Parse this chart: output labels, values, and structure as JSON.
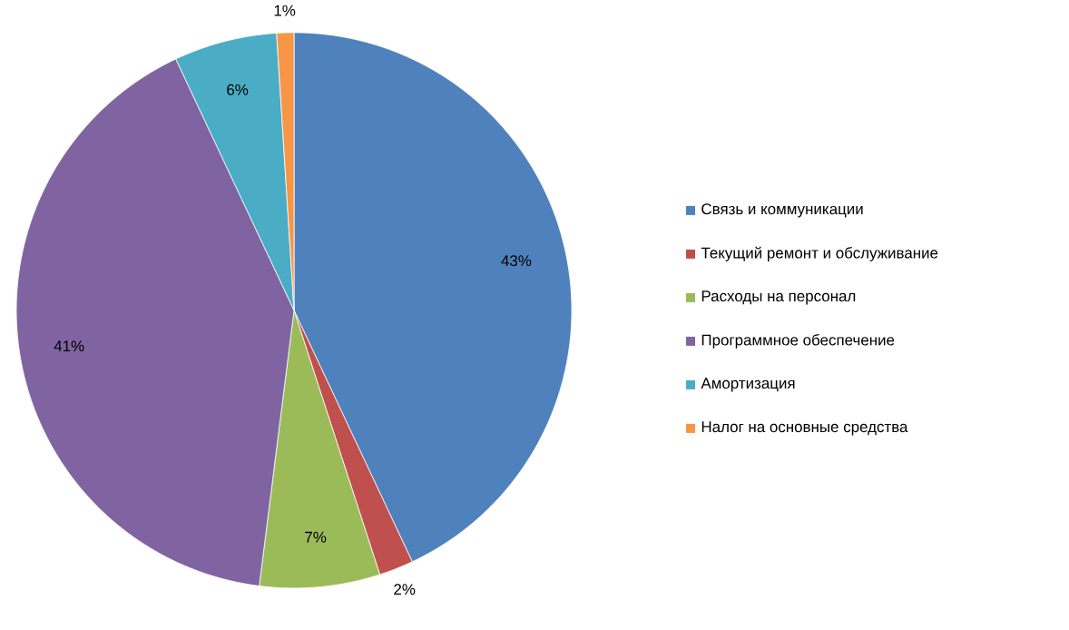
{
  "chart_data": {
    "type": "pie",
    "categories": [
      "Связь и коммуникации",
      "Текущий ремонт и обслуживание",
      "Расходы на персонал",
      "Программное обеспечение",
      "Амортизация",
      "Налог на основные средства"
    ],
    "values": [
      43,
      2,
      7,
      41,
      6,
      1
    ],
    "value_labels": [
      "43%",
      "2%",
      "7%",
      "41%",
      "6%",
      "1%"
    ],
    "colors": [
      "#4f81bd",
      "#c0504d",
      "#9bbb59",
      "#8064a2",
      "#4bacc6",
      "#f79646"
    ],
    "legend": "right"
  }
}
